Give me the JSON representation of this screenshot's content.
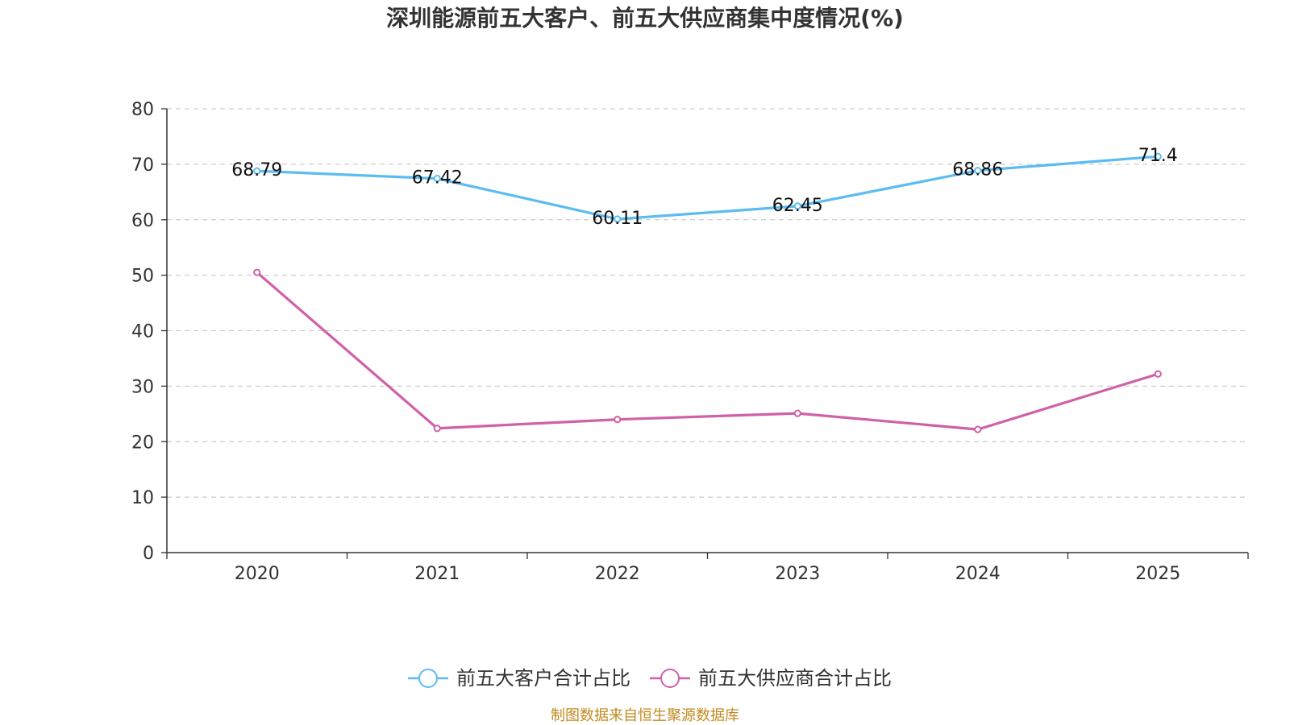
{
  "chart_data": {
    "type": "line",
    "title": "深圳能源前五大客户、前五大供应商集中度情况(%)",
    "categories": [
      "2020",
      "2021",
      "2022",
      "2023",
      "2024",
      "2025"
    ],
    "ylim": [
      0,
      80
    ],
    "yticks": [
      0,
      10,
      20,
      30,
      40,
      50,
      60,
      70,
      80
    ],
    "grid": true,
    "legend_position": "bottom-center",
    "series": [
      {
        "name": "前五大客户合计占比",
        "color": "#5bbcf2",
        "values": [
          68.79,
          67.42,
          60.11,
          62.45,
          68.86,
          71.4
        ],
        "labels": [
          "68.79",
          "67.42",
          "60.11",
          "62.45",
          "68.86",
          "71.4"
        ],
        "show_labels": true
      },
      {
        "name": "前五大供应商合计占比",
        "color": "#d060a8",
        "values": [
          50.5,
          22.4,
          24.0,
          25.1,
          22.2,
          32.2
        ],
        "show_labels": false
      }
    ],
    "source": "制图数据来自恒生聚源数据库"
  }
}
